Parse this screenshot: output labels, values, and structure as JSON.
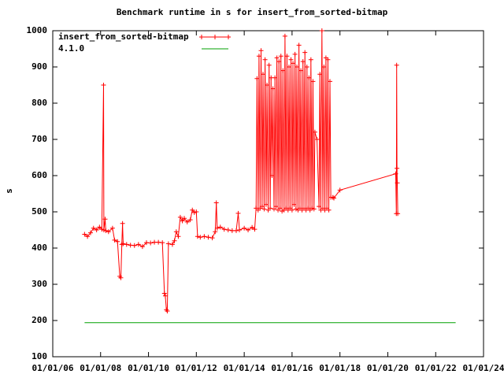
{
  "chart_data": {
    "type": "line",
    "title": "Benchmark runtime in s for insert_from_sorted-bitmap",
    "ylabel": "s",
    "xlabel": "",
    "ylim": [
      100,
      1000
    ],
    "xlim": [
      "2006-01-01",
      "2024-01-01"
    ],
    "y_ticks": [
      "100",
      "200",
      "300",
      "400",
      "500",
      "600",
      "700",
      "800",
      "900",
      "1000"
    ],
    "x_ticks": [
      "01/01/06",
      "01/01/08",
      "01/01/10",
      "01/01/12",
      "01/01/14",
      "01/01/16",
      "01/01/18",
      "01/01/20",
      "01/01/22",
      "01/01/24"
    ],
    "x_tick_dates": [
      "2006-01-01",
      "2008-01-01",
      "2010-01-01",
      "2012-01-01",
      "2014-01-01",
      "2016-01-01",
      "2018-01-01",
      "2020-01-01",
      "2022-01-01",
      "2024-01-01"
    ],
    "grid": false,
    "legend_position": "top-left",
    "series": [
      {
        "name": "insert_from_sorted-bitmap",
        "color": "#ff0000",
        "marker": "plus",
        "points": [
          [
            "2007-05-01",
            438
          ],
          [
            "2007-06-15",
            432
          ],
          [
            "2007-08-01",
            442
          ],
          [
            "2007-09-15",
            455
          ],
          [
            "2007-11-01",
            450
          ],
          [
            "2007-12-15",
            458
          ],
          [
            "2008-01-20",
            452
          ],
          [
            "2008-02-15",
            850
          ],
          [
            "2008-02-20",
            450
          ],
          [
            "2008-03-10",
            480
          ],
          [
            "2008-03-20",
            448
          ],
          [
            "2008-05-01",
            445
          ],
          [
            "2008-07-01",
            455
          ],
          [
            "2008-08-01",
            422
          ],
          [
            "2008-09-15",
            418
          ],
          [
            "2008-10-20",
            322
          ],
          [
            "2008-11-05",
            318
          ],
          [
            "2008-11-20",
            410
          ],
          [
            "2008-12-01",
            468
          ],
          [
            "2008-12-10",
            412
          ],
          [
            "2009-02-01",
            410
          ],
          [
            "2009-04-01",
            408
          ],
          [
            "2009-06-01",
            407
          ],
          [
            "2009-08-01",
            410
          ],
          [
            "2009-10-01",
            404
          ],
          [
            "2009-12-01",
            415
          ],
          [
            "2010-02-01",
            414
          ],
          [
            "2010-04-01",
            416
          ],
          [
            "2010-06-01",
            416
          ],
          [
            "2010-08-01",
            415
          ],
          [
            "2010-09-01",
            275
          ],
          [
            "2010-09-15",
            268
          ],
          [
            "2010-10-01",
            230
          ],
          [
            "2010-10-15",
            226
          ],
          [
            "2010-11-01",
            412
          ],
          [
            "2011-01-01",
            410
          ],
          [
            "2011-02-01",
            420
          ],
          [
            "2011-03-01",
            445
          ],
          [
            "2011-04-01",
            432
          ],
          [
            "2011-05-01",
            485
          ],
          [
            "2011-06-01",
            475
          ],
          [
            "2011-07-01",
            482
          ],
          [
            "2011-08-15",
            472
          ],
          [
            "2011-10-01",
            478
          ],
          [
            "2011-11-01",
            505
          ],
          [
            "2011-12-01",
            498
          ],
          [
            "2012-01-01",
            500
          ],
          [
            "2012-01-20",
            432
          ],
          [
            "2012-03-01",
            430
          ],
          [
            "2012-05-01",
            432
          ],
          [
            "2012-07-01",
            430
          ],
          [
            "2012-09-01",
            428
          ],
          [
            "2012-10-15",
            445
          ],
          [
            "2012-11-01",
            525
          ],
          [
            "2012-11-15",
            455
          ],
          [
            "2013-01-01",
            458
          ],
          [
            "2013-03-01",
            452
          ],
          [
            "2013-05-01",
            450
          ],
          [
            "2013-07-01",
            448
          ],
          [
            "2013-09-01",
            448
          ],
          [
            "2013-10-01",
            496
          ],
          [
            "2013-10-20",
            450
          ],
          [
            "2014-01-01",
            455
          ],
          [
            "2014-03-01",
            450
          ],
          [
            "2014-05-01",
            457
          ],
          [
            "2014-06-10",
            452
          ],
          [
            "2014-07-01",
            510
          ],
          [
            "2014-07-15",
            868
          ],
          [
            "2014-08-01",
            505
          ],
          [
            "2014-08-15",
            930
          ],
          [
            "2014-09-01",
            510
          ],
          [
            "2014-09-15",
            945
          ],
          [
            "2014-10-01",
            515
          ],
          [
            "2014-10-15",
            880
          ],
          [
            "2014-11-01",
            508
          ],
          [
            "2014-11-15",
            920
          ],
          [
            "2014-12-01",
            520
          ],
          [
            "2014-12-15",
            850
          ],
          [
            "2015-01-01",
            505
          ],
          [
            "2015-01-15",
            905
          ],
          [
            "2015-02-01",
            510
          ],
          [
            "2015-02-15",
            870
          ],
          [
            "2015-03-01",
            600
          ],
          [
            "2015-03-15",
            840
          ],
          [
            "2015-04-01",
            508
          ],
          [
            "2015-04-15",
            870
          ],
          [
            "2015-05-01",
            515
          ],
          [
            "2015-05-15",
            925
          ],
          [
            "2015-06-01",
            505
          ],
          [
            "2015-06-15",
            915
          ],
          [
            "2015-07-01",
            510
          ],
          [
            "2015-07-15",
            930
          ],
          [
            "2015-08-01",
            502
          ],
          [
            "2015-08-15",
            890
          ],
          [
            "2015-09-01",
            505
          ],
          [
            "2015-09-15",
            985
          ],
          [
            "2015-10-01",
            510
          ],
          [
            "2015-10-15",
            930
          ],
          [
            "2015-11-01",
            505
          ],
          [
            "2015-11-15",
            900
          ],
          [
            "2015-12-01",
            510
          ],
          [
            "2015-12-15",
            920
          ],
          [
            "2016-01-01",
            505
          ],
          [
            "2016-01-15",
            910
          ],
          [
            "2016-02-01",
            520
          ],
          [
            "2016-02-15",
            935
          ],
          [
            "2016-03-01",
            508
          ],
          [
            "2016-03-15",
            900
          ],
          [
            "2016-04-01",
            505
          ],
          [
            "2016-04-15",
            960
          ],
          [
            "2016-05-01",
            510
          ],
          [
            "2016-05-15",
            890
          ],
          [
            "2016-06-01",
            505
          ],
          [
            "2016-06-15",
            915
          ],
          [
            "2016-07-01",
            510
          ],
          [
            "2016-07-15",
            940
          ],
          [
            "2016-08-01",
            505
          ],
          [
            "2016-08-15",
            900
          ],
          [
            "2016-09-01",
            510
          ],
          [
            "2016-09-15",
            870
          ],
          [
            "2016-10-01",
            505
          ],
          [
            "2016-10-15",
            920
          ],
          [
            "2016-11-01",
            510
          ],
          [
            "2016-11-15",
            860
          ],
          [
            "2016-12-01",
            508
          ],
          [
            "2016-12-15",
            720
          ],
          [
            "2017-01-15",
            700
          ],
          [
            "2017-02-15",
            515
          ],
          [
            "2017-03-01",
            880
          ],
          [
            "2017-03-15",
            505
          ],
          [
            "2017-04-01",
            1000
          ],
          [
            "2017-04-15",
            510
          ],
          [
            "2017-05-01",
            900
          ],
          [
            "2017-05-15",
            505
          ],
          [
            "2017-06-01",
            925
          ],
          [
            "2017-06-15",
            510
          ],
          [
            "2017-07-01",
            920
          ],
          [
            "2017-07-15",
            505
          ],
          [
            "2017-08-01",
            860
          ],
          [
            "2017-08-15",
            540
          ],
          [
            "2017-09-15",
            540
          ],
          [
            "2017-10-01",
            538
          ],
          [
            "2018-01-01",
            560
          ],
          [
            "2020-05-01",
            605
          ],
          [
            "2020-05-10",
            495
          ],
          [
            "2020-05-15",
            905
          ],
          [
            "2020-05-20",
            620
          ],
          [
            "2020-05-25",
            580
          ],
          [
            "2020-06-01",
            495
          ]
        ]
      },
      {
        "name": "4.1.0",
        "color": "#00a000",
        "marker": "none",
        "points": [
          [
            "2007-05-01",
            194
          ],
          [
            "2022-11-01",
            194
          ]
        ]
      }
    ]
  }
}
